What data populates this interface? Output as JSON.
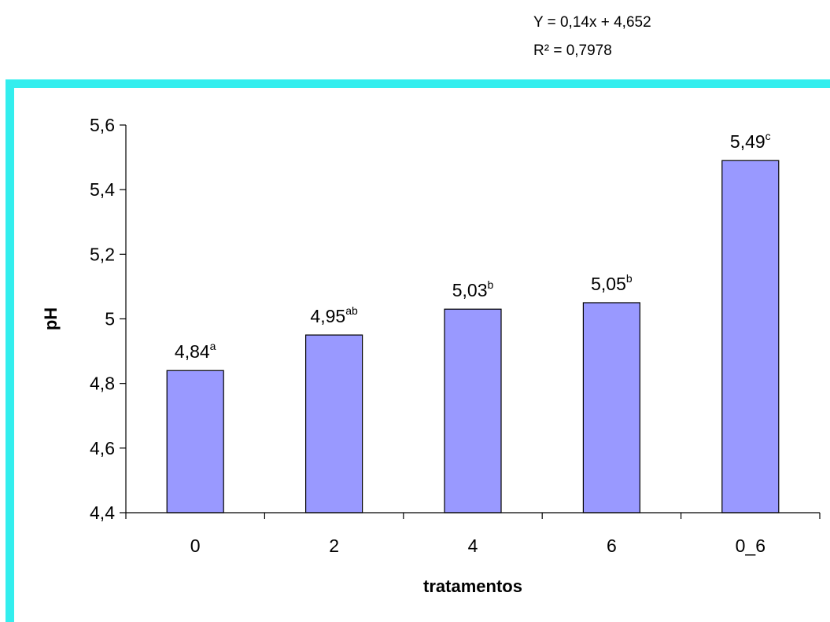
{
  "equation": {
    "line1": "Y = 0,14x + 4,652",
    "line2": "R² = 0,7978"
  },
  "colors": {
    "frame": "#33eeee",
    "bar": "#9999ff",
    "bar_stroke": "#000000"
  },
  "chart_data": {
    "type": "bar",
    "categories": [
      "0",
      "2",
      "4",
      "6",
      "0_6"
    ],
    "values": [
      4.84,
      4.95,
      5.03,
      5.05,
      5.49
    ],
    "value_labels": [
      "4,84",
      "4,95",
      "5,03",
      "5,05",
      "5,49"
    ],
    "value_superscripts": [
      "a",
      "ab",
      "b",
      "b",
      "c"
    ],
    "xlabel": "tratamentos",
    "ylabel": "pH",
    "ylim": [
      4.4,
      5.6
    ],
    "yticks": [
      4.4,
      4.6,
      4.8,
      5.0,
      5.2,
      5.4,
      5.6
    ],
    "ytick_labels": [
      "4,4",
      "4,6",
      "4,8",
      "5",
      "5,2",
      "5,4",
      "5,6"
    ],
    "grid": false
  }
}
